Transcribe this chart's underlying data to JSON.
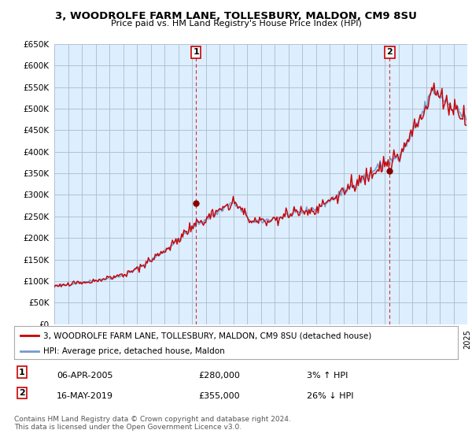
{
  "title": "3, WOODROLFE FARM LANE, TOLLESBURY, MALDON, CM9 8SU",
  "subtitle": "Price paid vs. HM Land Registry's House Price Index (HPI)",
  "ytick_values": [
    0,
    50000,
    100000,
    150000,
    200000,
    250000,
    300000,
    350000,
    400000,
    450000,
    500000,
    550000,
    600000,
    650000
  ],
  "hpi_color": "#7799cc",
  "price_color": "#cc0000",
  "fill_color": "#ddeeff",
  "bg_color": "#ddeeff",
  "plot_bg_color": "#ddeeff",
  "grid_color": "#aabbcc",
  "marker1_year": 2005.3,
  "marker1_value": 280000,
  "marker2_year": 2019.37,
  "marker2_value": 355000,
  "marker1_label": "1",
  "marker2_label": "2",
  "legend_line1": "3, WOODROLFE FARM LANE, TOLLESBURY, MALDON, CM9 8SU (detached house)",
  "legend_line2": "HPI: Average price, detached house, Maldon",
  "sale1_date": "06-APR-2005",
  "sale1_price": "£280,000",
  "sale1_hpi": "3% ↑ HPI",
  "sale2_date": "16-MAY-2019",
  "sale2_price": "£355,000",
  "sale2_hpi": "26% ↓ HPI",
  "footnote": "Contains HM Land Registry data © Crown copyright and database right 2024.\nThis data is licensed under the Open Government Licence v3.0.",
  "xmin": 1995,
  "xmax": 2025,
  "ymin": 0,
  "ymax": 650000
}
